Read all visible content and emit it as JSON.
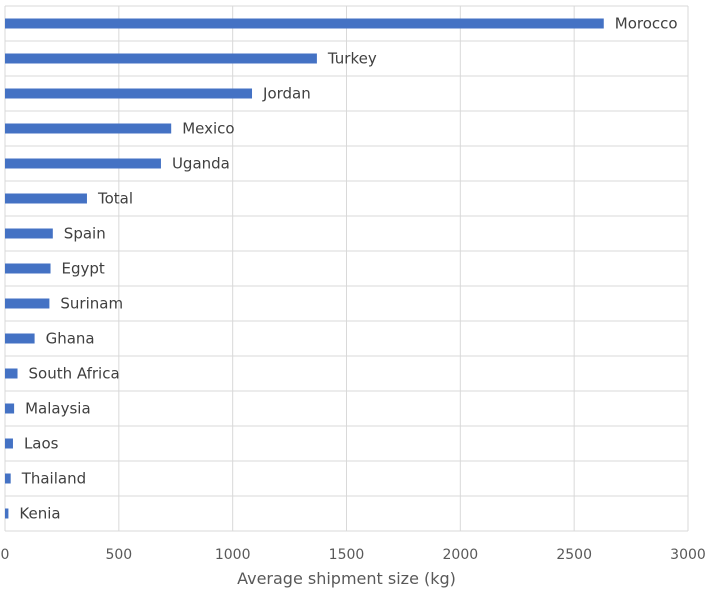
{
  "chart_data": {
    "type": "bar",
    "orientation": "horizontal",
    "categories": [
      "Morocco",
      "Turkey",
      "Jordan",
      "Mexico",
      "Uganda",
      "Total",
      "Spain",
      "Egypt",
      "Surinam",
      "Ghana",
      "South Africa",
      "Malaysia",
      "Laos",
      "Thailand",
      "Kenia"
    ],
    "values": [
      2630,
      1370,
      1085,
      730,
      685,
      360,
      210,
      200,
      195,
      130,
      55,
      40,
      35,
      25,
      15
    ],
    "xlabel": "Average shipment size (kg)",
    "ylabel": "",
    "xlim": [
      0,
      3000
    ],
    "xticks": [
      0,
      500,
      1000,
      1500,
      2000,
      2500,
      3000
    ],
    "grid": true,
    "bar_color": "#4472c4"
  }
}
